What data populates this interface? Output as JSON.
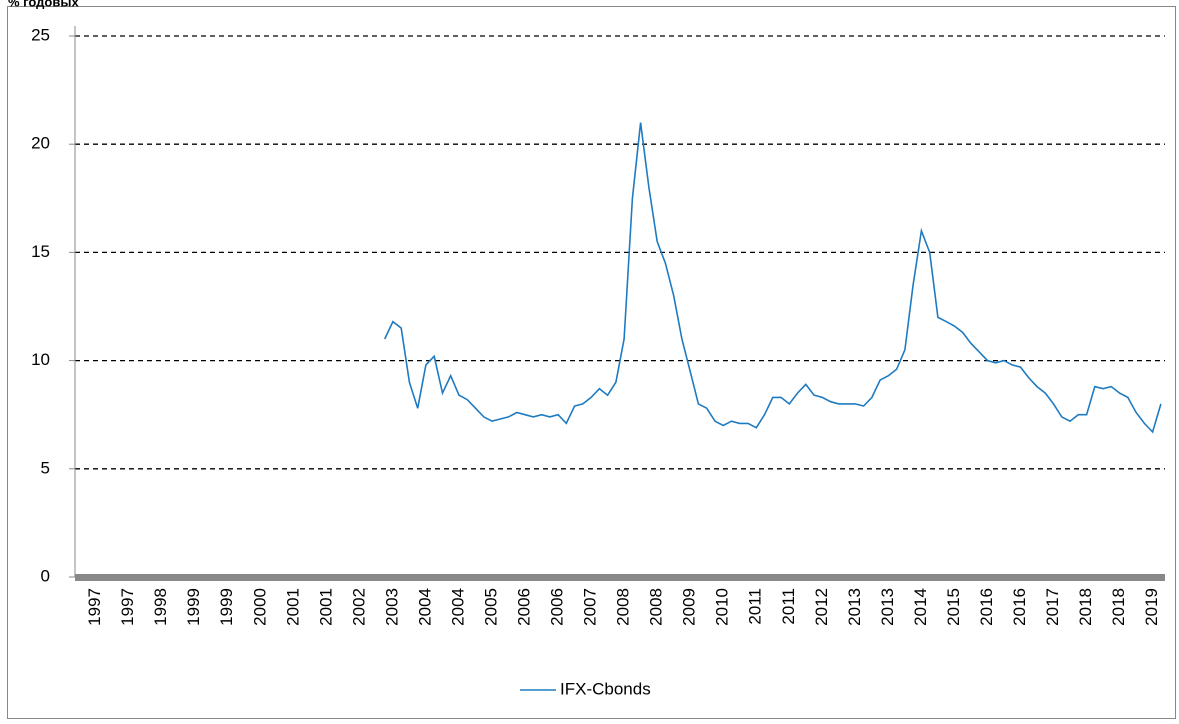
{
  "chart_data": {
    "type": "line",
    "title": "% годовых",
    "categories": [
      null,
      null,
      "1997",
      null,
      null,
      null,
      "1997",
      null,
      null,
      null,
      "1998",
      null,
      null,
      null,
      "1999",
      null,
      null,
      null,
      "1999",
      null,
      null,
      null,
      "2000",
      null,
      null,
      null,
      "2001",
      null,
      null,
      null,
      "2001",
      null,
      null,
      null,
      "2002",
      null,
      null,
      null,
      "2003",
      null,
      null,
      null,
      "2004",
      null,
      null,
      null,
      "2004",
      null,
      null,
      null,
      "2005",
      null,
      null,
      null,
      "2006",
      null,
      null,
      null,
      "2006",
      null,
      null,
      null,
      "2007",
      null,
      null,
      null,
      "2008",
      null,
      null,
      null,
      "2008",
      null,
      null,
      null,
      "2009",
      null,
      null,
      null,
      "2010",
      null,
      null,
      null,
      "2011",
      null,
      null,
      null,
      "2011",
      null,
      null,
      null,
      "2012",
      null,
      null,
      null,
      "2013",
      null,
      null,
      null,
      "2013",
      null,
      null,
      null,
      "2014",
      null,
      null,
      null,
      "2015",
      null,
      null,
      null,
      "2016",
      null,
      null,
      null,
      "2016",
      null,
      null,
      null,
      "2017",
      null,
      null,
      null,
      "2018",
      null,
      null,
      null,
      "2018",
      null,
      null,
      null,
      "2019",
      null
    ],
    "series": [
      {
        "name": "IFX-Cbonds",
        "color": "#1f7bc1",
        "values": [
          null,
          null,
          null,
          null,
          null,
          null,
          null,
          null,
          null,
          null,
          null,
          null,
          null,
          null,
          null,
          null,
          null,
          null,
          null,
          null,
          null,
          null,
          null,
          null,
          null,
          null,
          null,
          null,
          null,
          null,
          null,
          null,
          null,
          null,
          null,
          null,
          null,
          11.0,
          11.8,
          11.5,
          9.0,
          7.8,
          9.8,
          10.2,
          8.5,
          9.3,
          8.4,
          8.2,
          7.8,
          7.4,
          7.2,
          7.3,
          7.4,
          7.6,
          7.5,
          7.4,
          7.5,
          7.4,
          7.5,
          7.1,
          7.9,
          8.0,
          8.3,
          8.7,
          8.4,
          9.0,
          11.0,
          17.5,
          21.0,
          18.0,
          15.5,
          14.5,
          13.0,
          11.0,
          9.5,
          8.0,
          7.8,
          7.2,
          7.0,
          7.2,
          7.1,
          7.1,
          6.9,
          7.5,
          8.3,
          8.3,
          8.0,
          8.5,
          8.9,
          8.4,
          8.3,
          8.1,
          8.0,
          8.0,
          8.0,
          7.9,
          8.3,
          9.1,
          9.3,
          9.6,
          10.5,
          13.5,
          16.0,
          15.0,
          12.0,
          11.8,
          11.6,
          11.3,
          10.8,
          10.4,
          10.0,
          9.9,
          10.0,
          9.8,
          9.7,
          9.2,
          8.8,
          8.5,
          8.0,
          7.4,
          7.2,
          7.5,
          7.5,
          8.8,
          8.7,
          8.8,
          8.5,
          8.3,
          7.6,
          7.1,
          6.7,
          8.0
        ]
      }
    ],
    "ylim": [
      0,
      25
    ],
    "yticks": [
      0,
      5,
      10,
      15,
      20,
      25
    ],
    "grid": true,
    "legend": "bottom"
  }
}
